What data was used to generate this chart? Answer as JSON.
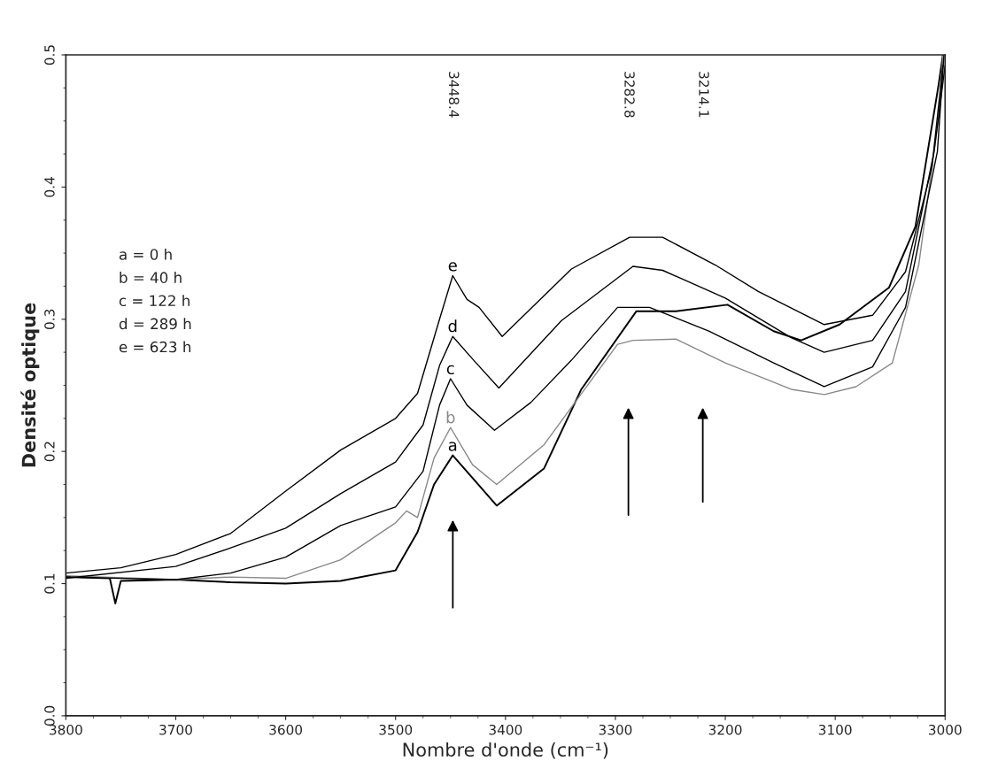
{
  "chart_data": {
    "type": "line",
    "xlabel": "Nombre d'onde (cm⁻¹)",
    "ylabel": "Densité optique",
    "xlim": [
      3800,
      3000
    ],
    "xticks": [
      3800,
      3700,
      3600,
      3500,
      3400,
      3300,
      3200,
      3100,
      3000
    ],
    "ylim": [
      0,
      0.5
    ],
    "yticks": [
      {
        "value": 0,
        "label": "0.0"
      },
      0.1,
      0.2,
      0.3,
      0.4,
      0.5
    ],
    "grid": false,
    "legend": false,
    "marker": "none",
    "line_style": "solid",
    "series": [
      {
        "name": "a",
        "color": "#000000",
        "x": [
          3800,
          3760,
          3755,
          3750,
          3700,
          3650,
          3600,
          3550,
          3500,
          3480,
          3465,
          3448,
          3430,
          3408,
          3365,
          3331,
          3281,
          3245,
          3198,
          3156,
          3131,
          3096,
          3051,
          3027,
          3006,
          3002
        ],
        "values": [
          0.105,
          0.104,
          0.085,
          0.102,
          0.103,
          0.101,
          0.1,
          0.102,
          0.11,
          0.139,
          0.175,
          0.197,
          0.18,
          0.159,
          0.187,
          0.247,
          0.306,
          0.306,
          0.311,
          0.291,
          0.284,
          0.296,
          0.324,
          0.37,
          0.477,
          0.5
        ]
      },
      {
        "name": "b",
        "color": "#888888",
        "x": [
          3800,
          3700,
          3650,
          3600,
          3550,
          3500,
          3490,
          3480,
          3465,
          3450,
          3430,
          3408,
          3365,
          3298,
          3284,
          3245,
          3200,
          3140,
          3110,
          3081,
          3048,
          3024,
          3006,
          3002
        ],
        "values": [
          0.106,
          0.103,
          0.105,
          0.104,
          0.118,
          0.146,
          0.155,
          0.15,
          0.195,
          0.218,
          0.19,
          0.175,
          0.205,
          0.281,
          0.284,
          0.285,
          0.267,
          0.247,
          0.243,
          0.249,
          0.267,
          0.341,
          0.452,
          0.5
        ]
      },
      {
        "name": "c",
        "color": "#000000",
        "x": [
          3800,
          3700,
          3650,
          3600,
          3550,
          3500,
          3475,
          3460,
          3450,
          3435,
          3410,
          3377,
          3340,
          3298,
          3269,
          3215,
          3156,
          3110,
          3066,
          3036,
          3007,
          3001
        ],
        "values": [
          0.105,
          0.103,
          0.108,
          0.12,
          0.144,
          0.158,
          0.185,
          0.235,
          0.255,
          0.235,
          0.216,
          0.237,
          0.269,
          0.309,
          0.309,
          0.291,
          0.267,
          0.249,
          0.264,
          0.309,
          0.427,
          0.5
        ]
      },
      {
        "name": "d",
        "color": "#000000",
        "x": [
          3800,
          3700,
          3650,
          3600,
          3550,
          3500,
          3475,
          3460,
          3448,
          3430,
          3406,
          3349,
          3284,
          3257,
          3200,
          3140,
          3110,
          3066,
          3036,
          3010,
          3000
        ],
        "values": [
          0.104,
          0.113,
          0.127,
          0.142,
          0.168,
          0.192,
          0.22,
          0.265,
          0.287,
          0.27,
          0.248,
          0.299,
          0.34,
          0.337,
          0.316,
          0.286,
          0.275,
          0.284,
          0.321,
          0.427,
          0.492
        ]
      },
      {
        "name": "e",
        "color": "#000000",
        "x": [
          3800,
          3750,
          3700,
          3650,
          3600,
          3550,
          3500,
          3480,
          3460,
          3448,
          3435,
          3424,
          3403,
          3340,
          3287,
          3257,
          3209,
          3170,
          3110,
          3066,
          3036,
          3012,
          3002
        ],
        "values": [
          0.108,
          0.112,
          0.122,
          0.138,
          0.17,
          0.201,
          0.225,
          0.244,
          0.3,
          0.333,
          0.315,
          0.309,
          0.287,
          0.338,
          0.362,
          0.362,
          0.341,
          0.321,
          0.296,
          0.303,
          0.336,
          0.415,
          0.492
        ]
      }
    ],
    "annotations": [
      "a = 0 h",
      "b = 40 h",
      "c = 122 h",
      "d = 289 h",
      "e = 623 h",
      "3448.4",
      "3282.8",
      "3214.1"
    ]
  }
}
